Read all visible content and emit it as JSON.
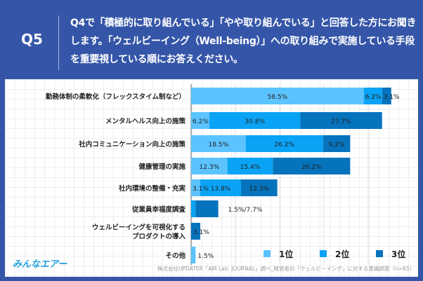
{
  "header": {
    "question": "Q5",
    "title": "Q4で「積極的に取り組んでいる」「やや取り組んでいる」と回答した方にお聞きします。「ウェルビーイング（Well-being）」への取り組みで実施している手段を重要視している順にお答えください。"
  },
  "logo": "みんなエアー",
  "source": "株式会社UPDATER「AIR Lab. JOURNAL」調べ_経営者の「ウェルビーイング」に対する意識調査（n=65）",
  "chart_data": {
    "type": "bar",
    "orientation": "horizontal",
    "stacked": true,
    "grid": true,
    "legend_position": "bottom-right",
    "unit": "%",
    "categories": [
      "勤務体制の柔軟化（フレックスタイム制など）",
      "メンタルヘルス向上の施策",
      "社内コミュニケーション向上の施策",
      "健康管理の実施",
      "社内環境の整備・充実",
      "従業員幸福度調査",
      "ウェルビーイングを可視化する\nプロダクトの導入",
      "その他"
    ],
    "series": [
      {
        "name": "1位",
        "color": "#5bc3ff",
        "values": [
          58.5,
          6.2,
          18.5,
          12.3,
          3.1,
          0,
          0,
          1.5
        ]
      },
      {
        "name": "2位",
        "color": "#0aa3f5",
        "values": [
          6.2,
          30.8,
          26.2,
          15.4,
          13.8,
          1.5,
          0,
          0
        ]
      },
      {
        "name": "3位",
        "color": "#0673bd",
        "values": [
          3.1,
          27.7,
          9.2,
          26.2,
          12.3,
          7.7,
          3.1,
          0
        ]
      }
    ],
    "data_labels": [
      [
        "58.5%",
        "6.2%",
        "3.1%"
      ],
      [
        "6.2%",
        "30.8%",
        "27.7%"
      ],
      [
        "18.5%",
        "26.2%",
        "9.2%"
      ],
      [
        "12.3%",
        "15.4%",
        "26.2%"
      ],
      [
        "3.1%",
        "13.8%",
        "12.3%"
      ],
      [
        "1.5%/7.7%"
      ],
      [
        "3.1%"
      ],
      [
        "1.5%"
      ]
    ]
  }
}
